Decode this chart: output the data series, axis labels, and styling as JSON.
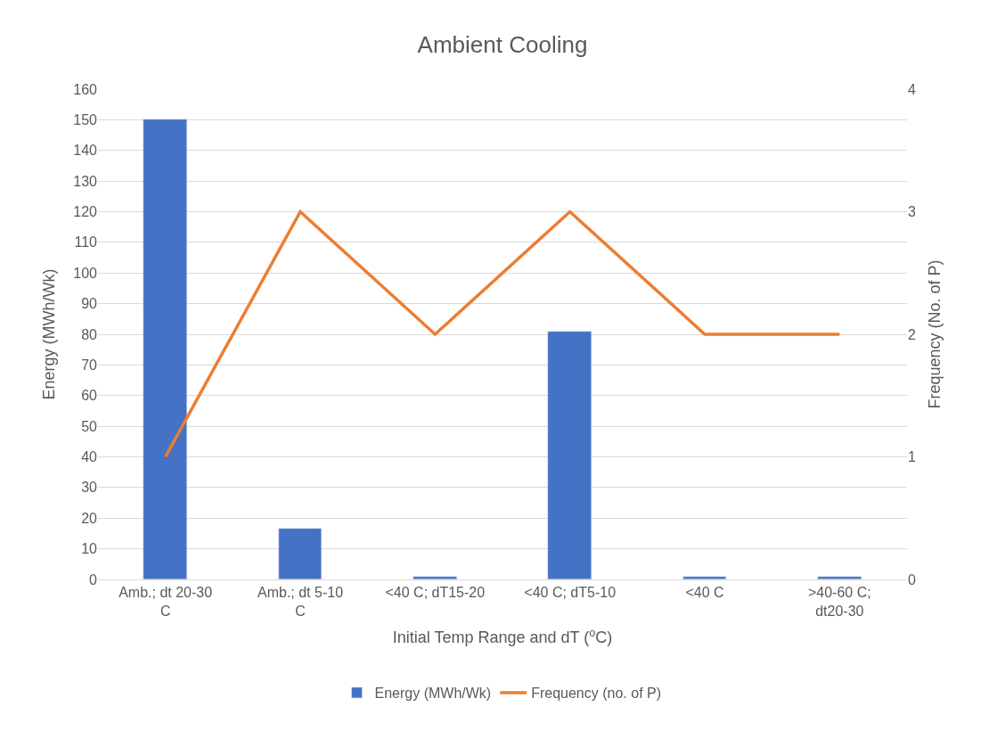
{
  "chart_data": {
    "type": "bar",
    "title": "Ambient Cooling",
    "xlabel": "Initial Temp Range and dT ($^{o}$C)",
    "ylabel": "Energy (MWh/Wk)",
    "y2label": "Frequency (No. of P)",
    "categories": [
      "Amb.; dt 20-30 C",
      "Amb.; dt 5-10 C",
      "<40 C; dT15-20",
      "<40 C; dT5-10",
      "<40 C",
      ">40-60 C; dt20-30"
    ],
    "series": [
      {
        "name": "Energy (MWh/Wk)",
        "color": "#4472c4",
        "values": [
          150,
          16.5,
          1,
          81,
          1,
          1
        ]
      },
      {
        "name": "Frequency (no. of P)",
        "type": "line",
        "axis": "y2",
        "color": "#ed7d31",
        "values": [
          1,
          3,
          2,
          3,
          2,
          2
        ]
      }
    ],
    "ylim": [
      0,
      160
    ],
    "yticks": [
      0,
      10,
      20,
      30,
      40,
      50,
      60,
      70,
      80,
      90,
      100,
      110,
      120,
      130,
      140,
      150,
      160
    ],
    "y2lim": [
      0,
      4
    ],
    "y2ticks": [
      0,
      1,
      2,
      3,
      4
    ],
    "grid": "y",
    "legend": "bottom",
    "marker": "none",
    "line_style": "solid"
  }
}
